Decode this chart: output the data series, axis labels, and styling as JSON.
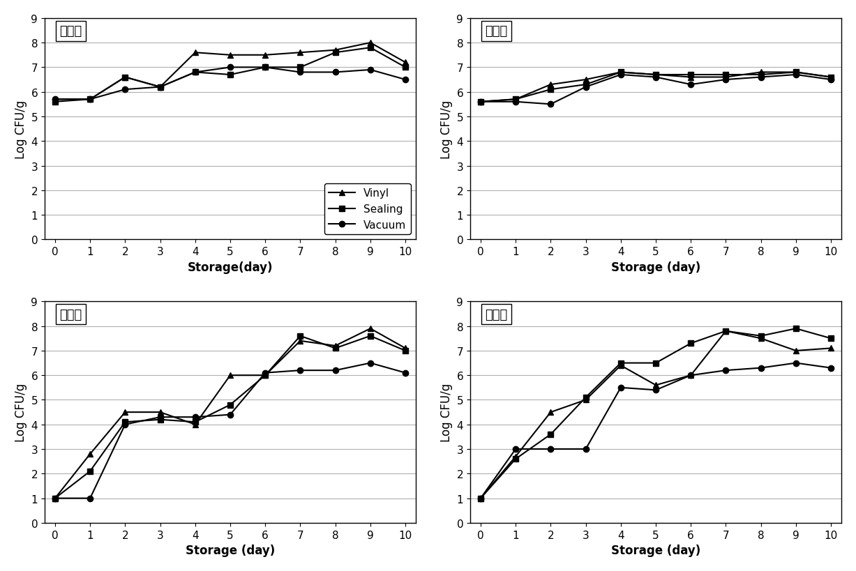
{
  "days": [
    0,
    1,
    2,
    3,
    4,
    5,
    6,
    7,
    8,
    9,
    10
  ],
  "gosari": {
    "title": "고사리",
    "vinyl": [
      5.7,
      5.7,
      6.6,
      6.2,
      7.6,
      7.5,
      7.5,
      7.6,
      7.7,
      8.0,
      7.2
    ],
    "sealing": [
      5.6,
      5.7,
      6.6,
      6.2,
      6.8,
      6.7,
      7.0,
      7.0,
      7.6,
      7.8,
      7.0
    ],
    "vacuum": [
      5.7,
      5.7,
      6.1,
      6.2,
      6.8,
      7.0,
      7.0,
      6.8,
      6.8,
      6.9,
      6.5
    ]
  },
  "torandae": {
    "title": "토란대",
    "vinyl": [
      5.6,
      5.7,
      6.3,
      6.5,
      6.8,
      6.7,
      6.6,
      6.6,
      6.8,
      6.8,
      6.6
    ],
    "sealing": [
      5.6,
      5.7,
      6.1,
      6.3,
      6.8,
      6.7,
      6.7,
      6.7,
      6.7,
      6.8,
      6.6
    ],
    "vacuum": [
      5.6,
      5.6,
      5.5,
      6.2,
      6.7,
      6.6,
      6.3,
      6.5,
      6.6,
      6.7,
      6.5
    ]
  },
  "chinnamul": {
    "title": "취나물",
    "vinyl": [
      1.0,
      2.8,
      4.5,
      4.5,
      4.0,
      6.0,
      6.0,
      7.4,
      7.2,
      7.9,
      7.1
    ],
    "sealing": [
      1.0,
      2.1,
      4.1,
      4.2,
      4.1,
      4.8,
      6.0,
      7.6,
      7.1,
      7.6,
      7.0
    ],
    "vacuum": [
      1.0,
      1.0,
      4.0,
      4.3,
      4.3,
      4.4,
      6.1,
      6.2,
      6.2,
      6.5,
      6.1
    ]
  },
  "siraegi": {
    "title": "시래기",
    "vinyl": [
      1.0,
      2.7,
      4.5,
      5.0,
      6.4,
      5.6,
      6.0,
      7.8,
      7.5,
      7.0,
      7.1
    ],
    "sealing": [
      1.0,
      2.6,
      3.6,
      5.1,
      6.5,
      6.5,
      7.3,
      7.8,
      7.6,
      7.9,
      7.5
    ],
    "vacuum": [
      1.0,
      3.0,
      3.0,
      3.0,
      5.5,
      5.4,
      6.0,
      6.2,
      6.3,
      6.5,
      6.3
    ]
  },
  "xlabel_gosari": "Storage(day)",
  "xlabel_other": "Storage (day)",
  "ylabel": "Log CFU/g",
  "ylim": [
    0,
    9
  ],
  "yticks": [
    0,
    1,
    2,
    3,
    4,
    5,
    6,
    7,
    8,
    9
  ],
  "line_color": "#000000",
  "legend_labels": [
    "Vinyl",
    "Sealing",
    "Vacuum"
  ],
  "markers": [
    "^",
    "s",
    "o"
  ],
  "markersize": 6,
  "linewidth": 1.5,
  "grid_color": "#b0b0b0",
  "title_fontsize": 13,
  "label_fontsize": 12,
  "tick_fontsize": 11,
  "legend_fontsize": 11
}
